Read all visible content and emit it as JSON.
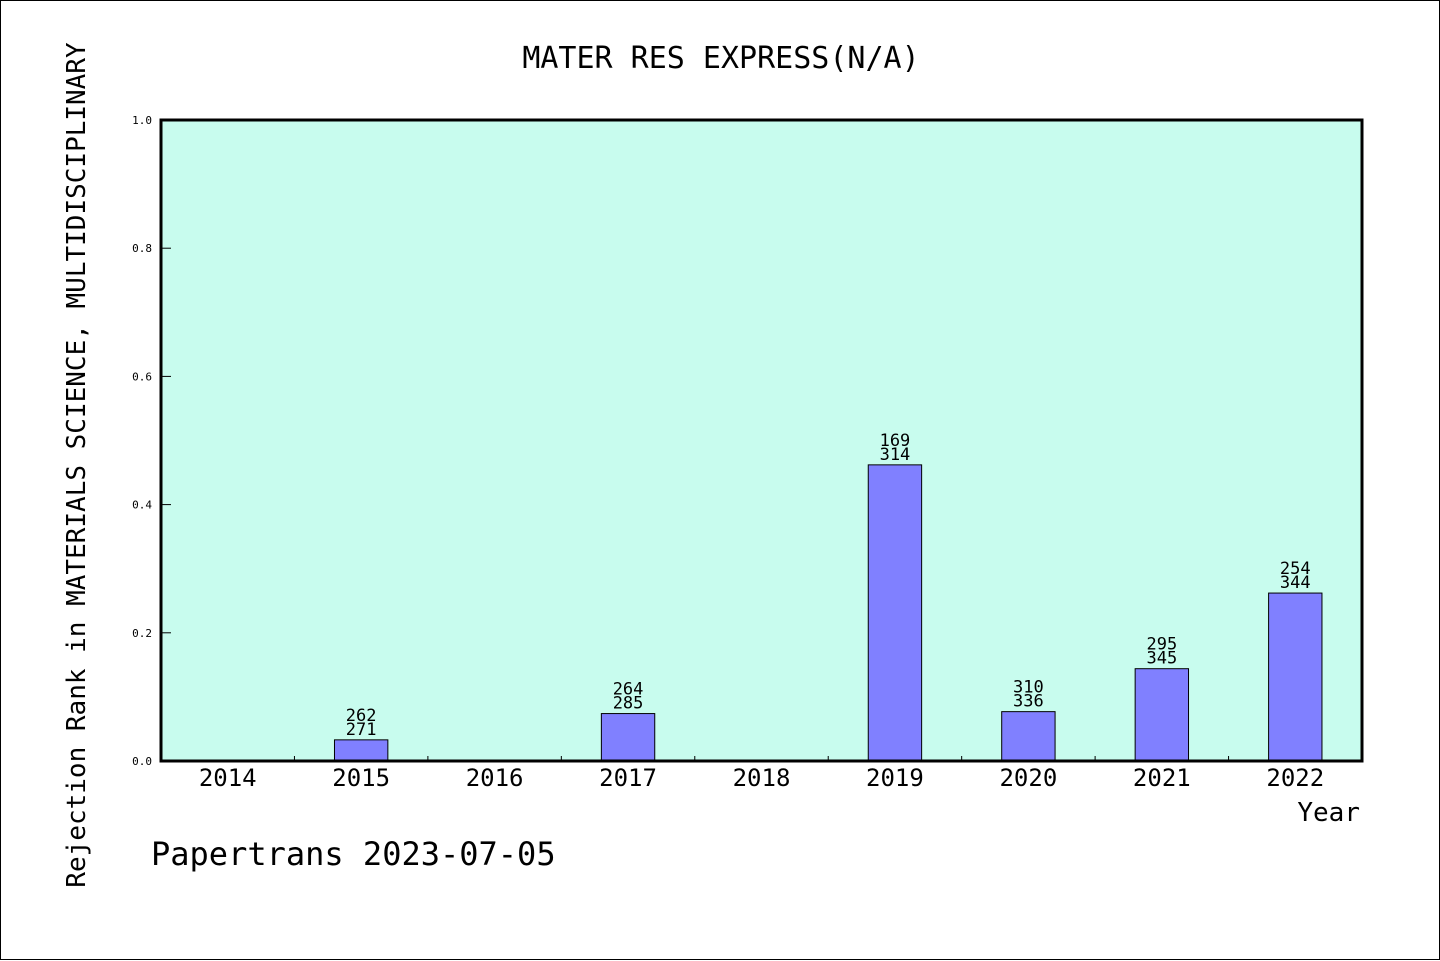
{
  "chart_data": {
    "type": "bar",
    "title": "MATER RES EXPRESS(N/A)",
    "xlabel": "Year",
    "ylabel": "Rejection Rank in MATERIALS SCIENCE, MULTIDISCIPLINARY",
    "ylim": [
      0,
      1.0
    ],
    "yticks": [
      "0.0",
      "0.2",
      "0.4",
      "0.6",
      "0.8",
      "1.0"
    ],
    "categories": [
      "2014",
      "2015",
      "2016",
      "2017",
      "2018",
      "2019",
      "2020",
      "2021",
      "2022"
    ],
    "values": [
      0,
      0.033,
      0,
      0.074,
      0,
      0.462,
      0.077,
      0.144,
      0.262
    ],
    "bar_labels_top": [
      "",
      "262",
      "",
      "264",
      "",
      "169",
      "310",
      "295",
      "254"
    ],
    "bar_labels_bottom": [
      "",
      "271",
      "",
      "285",
      "",
      "314",
      "336",
      "345",
      "344"
    ],
    "grid": false,
    "colors": {
      "plot_background": "#c8fcee",
      "bar_fill": "#8080ff",
      "bar_stroke": "#000000"
    }
  },
  "footer": {
    "text": "Papertrans 2023-07-05"
  }
}
